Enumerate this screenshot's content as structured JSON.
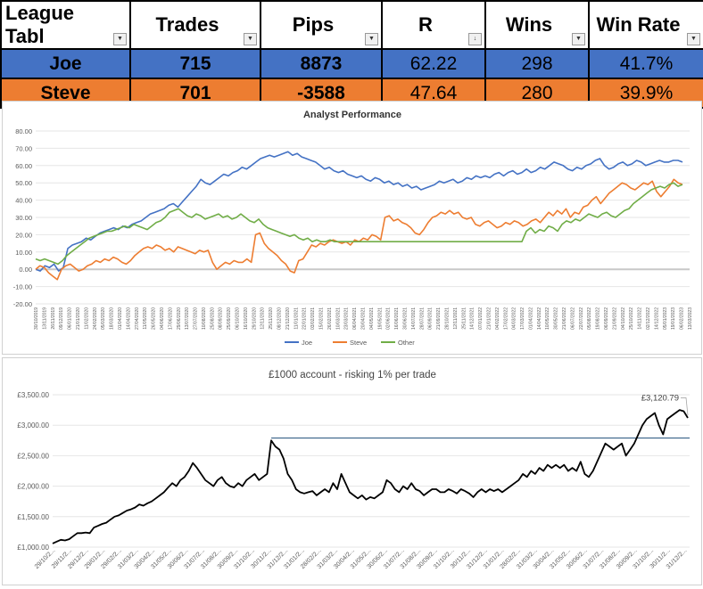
{
  "league": {
    "headers": [
      "League Tabl",
      "Trades",
      "Pips",
      "R",
      "Wins",
      "Win Rate"
    ],
    "rows": [
      {
        "name": "Joe",
        "trades": "715",
        "pips": "8873",
        "r": "62.22",
        "wins": "298",
        "win_rate": "41.7%",
        "color": "#4472c4"
      },
      {
        "name": "Steve",
        "trades": "701",
        "pips": "-3588",
        "r": "47.64",
        "wins": "280",
        "win_rate": "39.9%",
        "color": "#ed7d31"
      }
    ]
  },
  "chart_data": [
    {
      "type": "line",
      "title": "Analyst Performance",
      "ylim": [
        -20,
        80
      ],
      "yticks": [
        "-20.00",
        "-10.00",
        "0.00",
        "10.00",
        "20.00",
        "30.00",
        "40.00",
        "50.00",
        "60.00",
        "70.00",
        "80.00"
      ],
      "x_tick_labels": [
        "30/10/2019",
        "13/11/2019",
        "26/11/2019",
        "09/12/2019",
        "06/01/2020",
        "21/01/2020",
        "11/02/2020",
        "24/02/2020",
        "05/03/2020",
        "18/03/2020",
        "01/04/2020",
        "14/04/2020",
        "27/04/2020",
        "11/05/2020",
        "26/05/2020",
        "04/06/2020",
        "17/06/2020",
        "29/06/2020",
        "13/07/2020",
        "27/07/2020",
        "10/08/2020",
        "25/08/2020",
        "08/09/2020",
        "25/09/2020",
        "06/10/2020",
        "16/10/2020",
        "29/10/2020",
        "12/11/2020",
        "25/11/2020",
        "08/12/2020",
        "21/12/2020",
        "11/01/2021",
        "22/01/2021",
        "03/02/2021",
        "15/02/2021",
        "26/02/2021",
        "10/03/2021",
        "23/03/2021",
        "06/04/2021",
        "20/04/2021",
        "04/05/2021",
        "19/05/2021",
        "02/06/2021",
        "16/06/2021",
        "30/06/2021",
        "14/07/2021",
        "28/07/2021",
        "06/09/2021",
        "21/09/2021",
        "28/10/2021",
        "12/11/2021",
        "25/11/2021",
        "14/12/2021",
        "07/01/2022",
        "21/01/2022",
        "04/02/2022",
        "17/02/2022",
        "04/03/2022",
        "17/03/2022",
        "01/04/2022",
        "14/04/2022",
        "10/05/2022",
        "30/05/2022",
        "21/06/2022",
        "06/07/2022",
        "22/07/2022",
        "05/08/2022",
        "19/08/2022",
        "06/09/2022",
        "21/09/2022",
        "04/10/2022",
        "25/10/2022",
        "14/11/2022",
        "02/12/2022",
        "14/12/2022",
        "05/01/2023",
        "19/01/2023",
        "06/02/2023",
        "13/03/2023"
      ],
      "series": [
        {
          "name": "Joe",
          "color": "#4472c4",
          "values": [
            0,
            -1,
            2,
            1,
            3,
            -1,
            1,
            12,
            14,
            15,
            16,
            18,
            17,
            19,
            21,
            22,
            23,
            24,
            23,
            25,
            24,
            26,
            27,
            28,
            30,
            32,
            33,
            34,
            35,
            37,
            38,
            36,
            39,
            42,
            45,
            48,
            52,
            50,
            49,
            51,
            53,
            55,
            54,
            56,
            57,
            59,
            58,
            60,
            62,
            64,
            65,
            66,
            65,
            66,
            67,
            68,
            66,
            67,
            65,
            64,
            63,
            62,
            60,
            58,
            59,
            57,
            56,
            57,
            55,
            54,
            53,
            54,
            52,
            51,
            53,
            52,
            50,
            51,
            49,
            50,
            48,
            49,
            47,
            48,
            46,
            47,
            48,
            49,
            51,
            50,
            51,
            52,
            50,
            51,
            53,
            52,
            54,
            53,
            54,
            53,
            55,
            56,
            54,
            56,
            57,
            55,
            56,
            58,
            56,
            57,
            59,
            58,
            60,
            62,
            61,
            60,
            58,
            57,
            59,
            58,
            60,
            61,
            63,
            64,
            60,
            58,
            59,
            61,
            62,
            60,
            61,
            63,
            62,
            60,
            61,
            62,
            63,
            62,
            62,
            63,
            63,
            62
          ]
        },
        {
          "name": "Steve",
          "color": "#ed7d31",
          "values": [
            0,
            2,
            1,
            -2,
            -4,
            -6,
            0,
            2,
            3,
            1,
            -1,
            0,
            2,
            3,
            5,
            4,
            6,
            5,
            7,
            6,
            4,
            3,
            5,
            8,
            10,
            12,
            13,
            12,
            14,
            13,
            11,
            12,
            10,
            13,
            12,
            11,
            10,
            9,
            11,
            10,
            11,
            4,
            0,
            2,
            4,
            3,
            5,
            4,
            4,
            6,
            4,
            20,
            21,
            15,
            12,
            10,
            8,
            5,
            3,
            -1,
            -2,
            5,
            6,
            10,
            14,
            13,
            15,
            14,
            16,
            17,
            16,
            15,
            16,
            14,
            17,
            16,
            18,
            17,
            20,
            19,
            17,
            30,
            31,
            28,
            29,
            27,
            26,
            24,
            21,
            20,
            23,
            27,
            30,
            31,
            33,
            32,
            34,
            32,
            33,
            30,
            29,
            30,
            26,
            25,
            27,
            28,
            26,
            24,
            25,
            27,
            26,
            28,
            27,
            25,
            26,
            28,
            29,
            27,
            30,
            33,
            31,
            34,
            32,
            35,
            30,
            33,
            32,
            36,
            37,
            40,
            42,
            38,
            41,
            44,
            46,
            48,
            50,
            49,
            47,
            46,
            48,
            50,
            49,
            51,
            45,
            42,
            45,
            48,
            52,
            50,
            49
          ]
        },
        {
          "name": "Other",
          "color": "#70ad47",
          "values": [
            6,
            5,
            6,
            5,
            4,
            3,
            5,
            8,
            10,
            12,
            14,
            16,
            18,
            19,
            20,
            21,
            22,
            22,
            23,
            24,
            25,
            24,
            26,
            25,
            24,
            23,
            25,
            27,
            28,
            30,
            33,
            34,
            35,
            33,
            31,
            30,
            32,
            31,
            29,
            30,
            31,
            32,
            30,
            31,
            29,
            30,
            32,
            30,
            28,
            27,
            29,
            26,
            24,
            23,
            22,
            21,
            20,
            19,
            20,
            18,
            17,
            18,
            16,
            17,
            16,
            16,
            17,
            16,
            16,
            16,
            16,
            16,
            16,
            16,
            16,
            16,
            16,
            16,
            16,
            16,
            16,
            16,
            16,
            16,
            16,
            16,
            16,
            16,
            16,
            16,
            16,
            16,
            16,
            16,
            16,
            16,
            16,
            16,
            16,
            16,
            16,
            16,
            16,
            16,
            16,
            16,
            16,
            16,
            16,
            16,
            22,
            24,
            21,
            23,
            22,
            25,
            24,
            22,
            26,
            28,
            27,
            29,
            28,
            30,
            32,
            31,
            30,
            32,
            33,
            31,
            30,
            32,
            34,
            35,
            38,
            40,
            42,
            44,
            46,
            47,
            48,
            47,
            49,
            50,
            48,
            49
          ]
        }
      ]
    },
    {
      "type": "line",
      "title": "£1000 account - risking 1% per trade",
      "ylim": [
        1000,
        3500
      ],
      "yticks": [
        "£1,000.00",
        "£1,500.00",
        "£2,000.00",
        "£2,500.00",
        "£3,000.00",
        "£3,500.00"
      ],
      "x_tick_labels": [
        "29/10/2...",
        "29/11/2...",
        "29/12/2...",
        "29/01/2...",
        "29/02/2...",
        "31/03/2...",
        "30/04/2...",
        "31/05/2...",
        "30/06/2...",
        "31/07/2...",
        "31/08/2...",
        "30/09/2...",
        "31/10/2...",
        "30/11/2...",
        "31/12/2...",
        "31/01/2...",
        "28/02/2...",
        "31/03/2...",
        "30/04/2...",
        "31/05/2...",
        "30/06/2...",
        "31/07/2...",
        "31/08/2...",
        "30/09/2...",
        "31/10/2...",
        "30/11/2...",
        "31/12/2...",
        "31/01/2...",
        "28/02/2...",
        "31/03/2...",
        "30/04/2...",
        "31/05/2...",
        "30/06/2...",
        "31/07/2...",
        "31/08/2...",
        "30/09/2...",
        "31/10/2...",
        "30/11/2...",
        "31/12/2..."
      ],
      "reference_line": 2790,
      "annotation": "£3,120.79",
      "series": [
        {
          "name": "",
          "color": "#000000",
          "values": [
            1060,
            1090,
            1120,
            1110,
            1130,
            1180,
            1230,
            1230,
            1240,
            1230,
            1320,
            1350,
            1380,
            1400,
            1450,
            1500,
            1520,
            1560,
            1600,
            1620,
            1650,
            1700,
            1680,
            1720,
            1750,
            1800,
            1850,
            1900,
            1980,
            2050,
            2000,
            2100,
            2150,
            2250,
            2380,
            2300,
            2200,
            2100,
            2050,
            2000,
            2100,
            2150,
            2050,
            2000,
            1980,
            2050,
            2000,
            2100,
            2150,
            2200,
            2100,
            2150,
            2200,
            2750,
            2650,
            2600,
            2450,
            2200,
            2100,
            1950,
            1900,
            1880,
            1900,
            1920,
            1850,
            1900,
            1950,
            1900,
            2050,
            1950,
            2200,
            2050,
            1900,
            1850,
            1800,
            1850,
            1780,
            1820,
            1800,
            1850,
            1900,
            2100,
            2050,
            1950,
            1900,
            2000,
            1950,
            2050,
            1950,
            1920,
            1850,
            1900,
            1950,
            1950,
            1900,
            1900,
            1950,
            1920,
            1880,
            1950,
            1920,
            1880,
            1820,
            1900,
            1950,
            1900,
            1950,
            1920,
            1950,
            1900,
            1950,
            2000,
            2050,
            2100,
            2200,
            2150,
            2250,
            2200,
            2300,
            2250,
            2350,
            2300,
            2350,
            2300,
            2350,
            2250,
            2300,
            2250,
            2400,
            2200,
            2150,
            2250,
            2400,
            2550,
            2700,
            2650,
            2600,
            2650,
            2700,
            2500,
            2600,
            2700,
            2850,
            3000,
            3100,
            3150,
            3200,
            3000,
            2850,
            3100,
            3150,
            3200,
            3250,
            3230,
            3120
          ]
        }
      ]
    }
  ]
}
